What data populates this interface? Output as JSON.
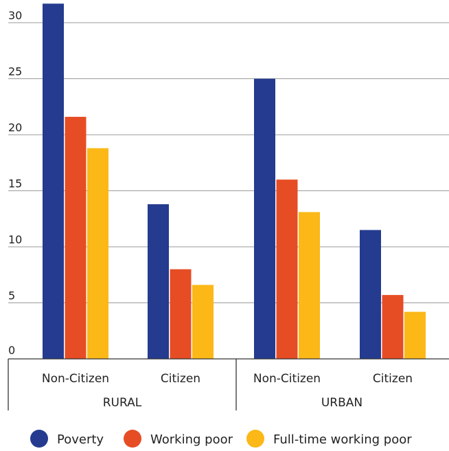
{
  "chart_data": {
    "type": "bar",
    "groups": [
      {
        "label": "RURAL",
        "categories": [
          "Non-Citizen",
          "Citizen"
        ]
      },
      {
        "label": "URBAN",
        "categories": [
          "Non-Citizen",
          "Citizen"
        ]
      }
    ],
    "categories": [
      "Non-Citizen",
      "Citizen",
      "Non-Citizen",
      "Citizen"
    ],
    "series": [
      {
        "name": "Poverty",
        "color": "#243b8f",
        "values": [
          31.7,
          13.8,
          25.0,
          11.5
        ]
      },
      {
        "name": "Working poor",
        "color": "#e64d25",
        "values": [
          21.6,
          8.0,
          16.0,
          5.7
        ]
      },
      {
        "name": "Full-time working poor",
        "color": "#fbb817",
        "values": [
          18.8,
          6.6,
          13.1,
          4.2
        ]
      }
    ],
    "yticks": [
      0,
      5,
      10,
      15,
      20,
      25,
      30
    ],
    "ylim": [
      0,
      32
    ],
    "grid": true,
    "legend": "bottom"
  }
}
